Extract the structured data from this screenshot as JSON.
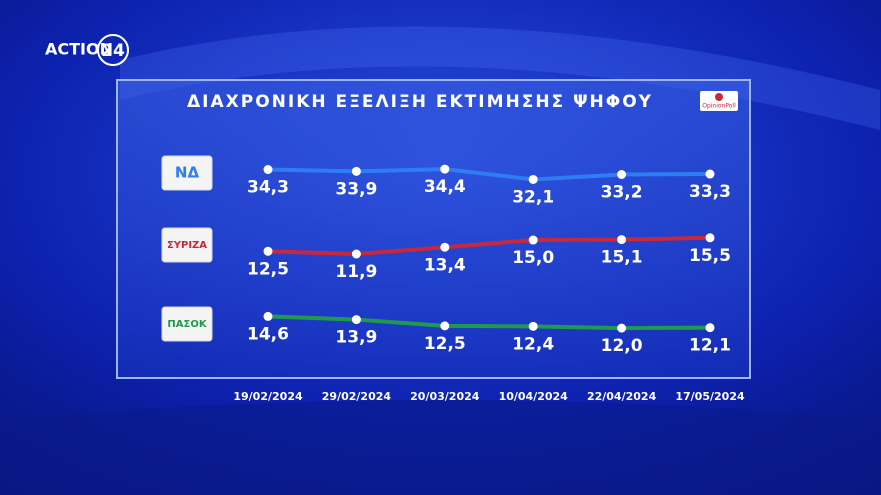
{
  "channel": {
    "name": "ACTION",
    "number": "24"
  },
  "chart_data": {
    "type": "line",
    "title": "ΔΙΑΧΡΟΝΙΚΗ ΕΞΕΛΙΞΗ ΕΚΤΙΜΗΣΗΣ ΨΗΦΟΥ",
    "source": "OpinionPoll",
    "categories": [
      "19/02/2024",
      "29/02/2024",
      "20/03/2024",
      "10/04/2024",
      "22/04/2024",
      "17/05/2024"
    ],
    "series": [
      {
        "name": "ΝΔ",
        "color": "#2f7df2",
        "values": [
          34.3,
          33.9,
          34.4,
          32.1,
          33.2,
          33.3
        ],
        "value_labels": [
          "34,3",
          "33,9",
          "34,4",
          "32,1",
          "33,2",
          "33,3"
        ]
      },
      {
        "name": "ΣΥΡΙΖΑ",
        "color": "#c8283c",
        "values": [
          12.5,
          11.9,
          13.4,
          15.0,
          15.1,
          15.5
        ],
        "value_labels": [
          "12,5",
          "11,9",
          "13,4",
          "15,0",
          "15,1",
          "15,5"
        ]
      },
      {
        "name": "ΠΑΣΟΚ",
        "color": "#1f9a4c",
        "values": [
          14.6,
          13.9,
          12.5,
          12.4,
          12.0,
          12.1
        ],
        "value_labels": [
          "14,6",
          "13,9",
          "12,5",
          "12,4",
          "12,0",
          "12,1"
        ]
      }
    ]
  }
}
